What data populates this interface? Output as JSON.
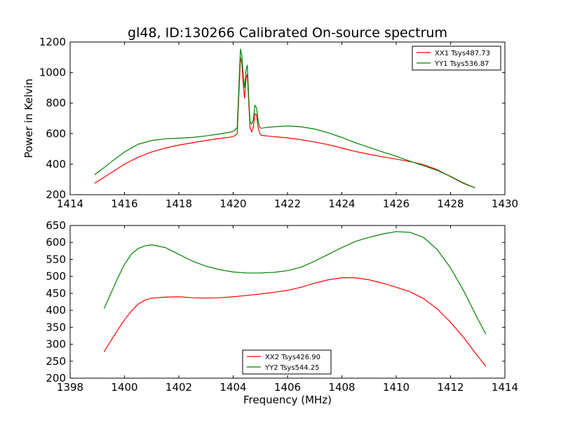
{
  "title": "gl48, ID:130266 Calibrated On-source spectrum",
  "colors": {
    "xx": "#ff0000",
    "yy": "#008000"
  },
  "chart_data": [
    {
      "type": "line",
      "title": "gl48, ID:130266 Calibrated On-source spectrum",
      "xlabel": "",
      "ylabel": "Power in Kelvin",
      "xlim": [
        1414,
        1430
      ],
      "ylim": [
        200,
        1200
      ],
      "xticks": [
        1414,
        1416,
        1418,
        1420,
        1422,
        1424,
        1426,
        1428,
        1430
      ],
      "yticks": [
        200,
        400,
        600,
        800,
        1000,
        1200
      ],
      "legend_position": "top-right",
      "grid": false,
      "series": [
        {
          "name": "XX1 Tsys487.73",
          "color": "#ff0000",
          "x": [
            1414.9,
            1415.3,
            1415.7,
            1416.0,
            1416.5,
            1417.0,
            1417.5,
            1418.0,
            1418.5,
            1419.0,
            1419.5,
            1419.9,
            1420.05,
            1420.15,
            1420.22,
            1420.27,
            1420.32,
            1420.38,
            1420.42,
            1420.47,
            1420.52,
            1420.57,
            1420.62,
            1420.68,
            1420.74,
            1420.8,
            1420.86,
            1420.92,
            1420.98,
            1421.05,
            1421.2,
            1421.5,
            1422.0,
            1422.5,
            1423.0,
            1423.5,
            1424.0,
            1424.5,
            1425.0,
            1425.5,
            1426.0,
            1426.5,
            1427.0,
            1427.5,
            1428.0,
            1428.5,
            1428.9
          ],
          "y": [
            275,
            320,
            365,
            400,
            445,
            480,
            505,
            525,
            540,
            555,
            568,
            577,
            585,
            600,
            900,
            1100,
            1060,
            900,
            830,
            960,
            990,
            820,
            640,
            612,
            640,
            730,
            725,
            640,
            600,
            588,
            586,
            580,
            572,
            560,
            545,
            528,
            505,
            483,
            465,
            448,
            433,
            417,
            397,
            365,
            318,
            272,
            245
          ]
        },
        {
          "name": "YY1 Tsys536.87",
          "color": "#008000",
          "x": [
            1414.9,
            1415.3,
            1415.7,
            1416.0,
            1416.5,
            1417.0,
            1417.5,
            1418.0,
            1418.5,
            1419.0,
            1419.5,
            1419.9,
            1420.05,
            1420.15,
            1420.22,
            1420.27,
            1420.32,
            1420.38,
            1420.42,
            1420.47,
            1420.52,
            1420.57,
            1420.62,
            1420.68,
            1420.74,
            1420.8,
            1420.86,
            1420.92,
            1420.98,
            1421.05,
            1421.2,
            1421.5,
            1422.0,
            1422.5,
            1423.0,
            1423.5,
            1424.0,
            1424.5,
            1425.0,
            1425.5,
            1426.0,
            1426.5,
            1427.0,
            1427.5,
            1428.0,
            1428.5,
            1428.9
          ],
          "y": [
            330,
            385,
            440,
            480,
            530,
            555,
            566,
            570,
            575,
            585,
            598,
            610,
            620,
            640,
            950,
            1155,
            1110,
            960,
            900,
            1010,
            1050,
            850,
            680,
            662,
            690,
            785,
            770,
            680,
            640,
            635,
            640,
            645,
            650,
            645,
            630,
            605,
            575,
            540,
            510,
            480,
            452,
            420,
            390,
            360,
            320,
            275,
            245
          ]
        }
      ]
    },
    {
      "type": "line",
      "title": "",
      "xlabel": "Frequency (MHz)",
      "ylabel": "",
      "xlim": [
        1398,
        1414
      ],
      "ylim": [
        200,
        650
      ],
      "xticks": [
        1398,
        1400,
        1402,
        1404,
        1406,
        1408,
        1410,
        1412,
        1414
      ],
      "yticks": [
        200,
        250,
        300,
        350,
        400,
        450,
        500,
        550,
        600,
        650
      ],
      "legend_position": "bottom-center",
      "grid": false,
      "series": [
        {
          "name": "XX2 Tsys426.90",
          "color": "#ff0000",
          "x": [
            1399.25,
            1399.5,
            1399.75,
            1400.0,
            1400.25,
            1400.5,
            1400.75,
            1401.0,
            1401.5,
            1402.0,
            1402.5,
            1403.0,
            1403.5,
            1404.0,
            1404.5,
            1405.0,
            1405.5,
            1406.0,
            1406.5,
            1407.0,
            1407.5,
            1408.0,
            1408.5,
            1409.0,
            1409.5,
            1410.0,
            1410.5,
            1411.0,
            1411.5,
            1412.0,
            1412.5,
            1413.0,
            1413.3
          ],
          "y": [
            278,
            310,
            342,
            372,
            397,
            418,
            430,
            436,
            439,
            440,
            437,
            436,
            437,
            440,
            444,
            448,
            453,
            459,
            468,
            480,
            490,
            496,
            496,
            490,
            480,
            468,
            455,
            435,
            405,
            365,
            318,
            265,
            235
          ]
        },
        {
          "name": "YY2 Tsys544.25",
          "color": "#008000",
          "x": [
            1399.25,
            1399.5,
            1399.75,
            1400.0,
            1400.25,
            1400.5,
            1400.75,
            1401.0,
            1401.5,
            1402.0,
            1402.5,
            1403.0,
            1403.5,
            1404.0,
            1404.5,
            1405.0,
            1405.5,
            1406.0,
            1406.5,
            1407.0,
            1407.5,
            1408.0,
            1408.5,
            1409.0,
            1409.5,
            1410.0,
            1410.5,
            1411.0,
            1411.5,
            1412.0,
            1412.5,
            1413.0,
            1413.3
          ],
          "y": [
            405,
            450,
            495,
            535,
            565,
            582,
            590,
            593,
            585,
            565,
            545,
            530,
            520,
            513,
            510,
            510,
            512,
            517,
            527,
            545,
            565,
            585,
            603,
            615,
            625,
            632,
            630,
            615,
            580,
            525,
            455,
            375,
            330
          ]
        }
      ]
    }
  ]
}
